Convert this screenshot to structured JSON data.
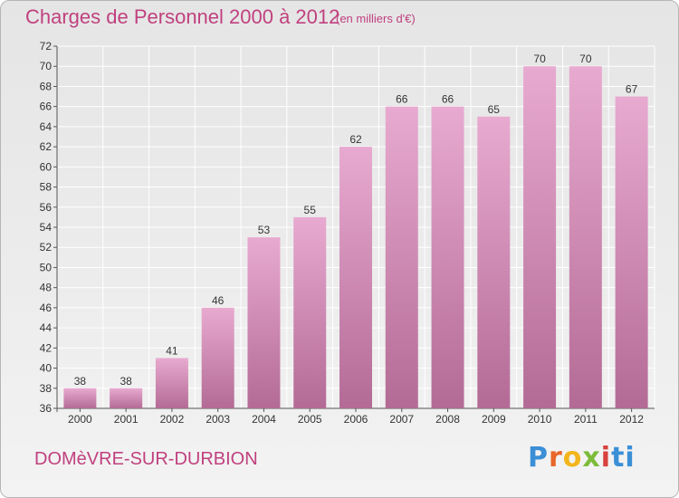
{
  "header": {
    "title": "Charges de Personnel 2000 à 2012",
    "unit": "(en milliers d'€)"
  },
  "footer": {
    "commune": "DOMèVRE-SUR-DURBION",
    "logo": "Proxiti",
    "logo_colors": [
      "#3b8fd6",
      "#e8662a",
      "#f2b51c",
      "#7cbc3a",
      "#d9413f",
      "#3b8fd6"
    ]
  },
  "chart_data": {
    "type": "bar",
    "title": "Charges de Personnel 2000 à 2012",
    "subtitle": "(en milliers d'€)",
    "xlabel": "",
    "ylabel": "",
    "categories": [
      "2000",
      "2001",
      "2002",
      "2003",
      "2004",
      "2005",
      "2006",
      "2007",
      "2008",
      "2009",
      "2010",
      "2011",
      "2012"
    ],
    "values": [
      38,
      38,
      41,
      46,
      53,
      55,
      62,
      66,
      66,
      65,
      70,
      70,
      67
    ],
    "ylim": [
      36,
      72
    ],
    "yticks": [
      36,
      38,
      40,
      42,
      44,
      46,
      48,
      50,
      52,
      54,
      56,
      58,
      60,
      62,
      64,
      66,
      68,
      70,
      72
    ],
    "grid": true,
    "bar_color_top": "#e8aad0",
    "bar_color_bottom": "#b36b95",
    "grid_color": "#ffffff"
  }
}
